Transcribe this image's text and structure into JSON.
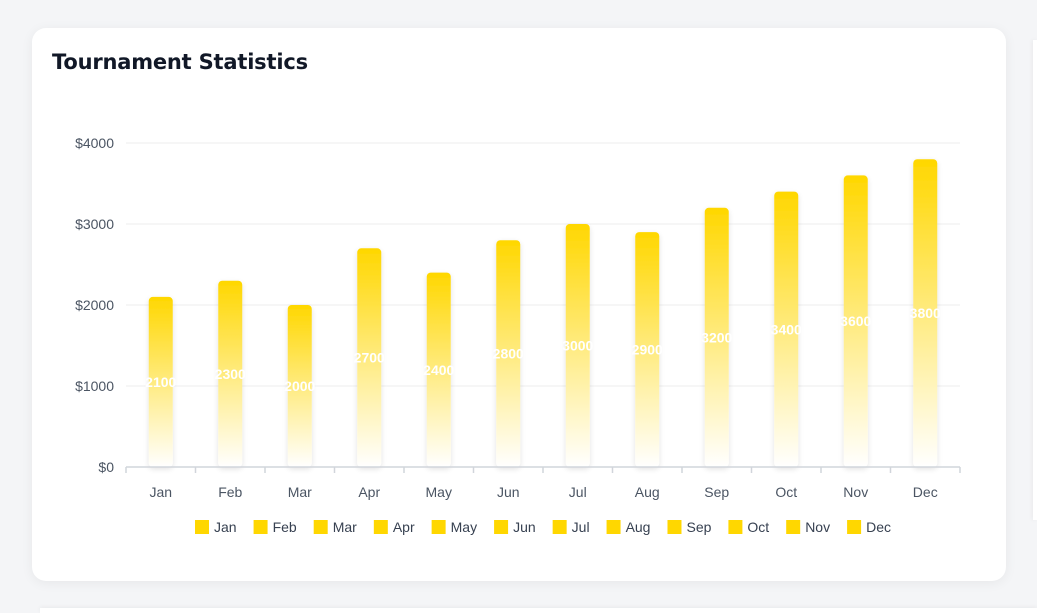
{
  "card": {
    "title": "Tournament Statistics"
  },
  "chart_data": {
    "type": "bar",
    "title": "Tournament Statistics",
    "categories": [
      "Jan",
      "Feb",
      "Mar",
      "Apr",
      "May",
      "Jun",
      "Jul",
      "Aug",
      "Sep",
      "Oct",
      "Nov",
      "Dec"
    ],
    "values": [
      2100,
      2300,
      2000,
      2700,
      2400,
      2800,
      3000,
      2900,
      3200,
      3400,
      3600,
      3800
    ],
    "ylim": [
      0,
      4000
    ],
    "yticks": [
      0,
      1000,
      2000,
      3000,
      4000
    ],
    "ytick_labels": [
      "$0",
      "$1000",
      "$2000",
      "$3000",
      "$4000"
    ],
    "xlabel": "",
    "ylabel": "",
    "grid": true,
    "legend": {
      "placement": "bottom-center",
      "entries": [
        "Jan",
        "Feb",
        "Mar",
        "Apr",
        "May",
        "Jun",
        "Jul",
        "Aug",
        "Sep",
        "Oct",
        "Nov",
        "Dec"
      ]
    },
    "data_labels": true,
    "colors": {
      "bar_top": "#FFD700",
      "bar_bottom": "#FFFFFF",
      "legend_swatch": "#FFD700",
      "grid": "#EEEEEE",
      "axis": "#D1D5DB",
      "tick_text": "#4B5563",
      "data_label": "#FFFFFF"
    }
  }
}
